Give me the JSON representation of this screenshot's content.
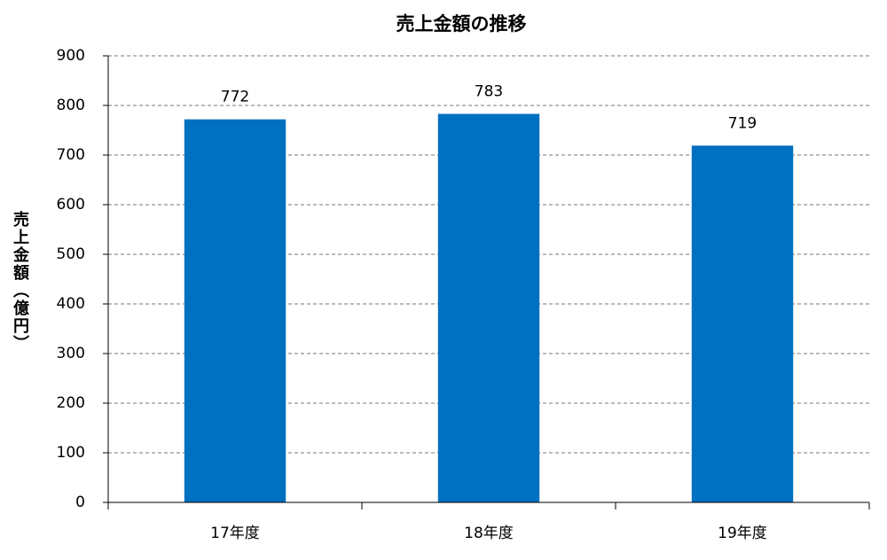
{
  "chart_data": {
    "type": "bar",
    "title": "売上金額の推移",
    "y_label": "売上金額（億円）",
    "categories": [
      "17年度",
      "18年度",
      "19年度"
    ],
    "values": [
      772,
      783,
      719
    ],
    "color": "#0070c0",
    "ylim": [
      0,
      900
    ],
    "yticks": [
      0,
      100,
      200,
      300,
      400,
      500,
      600,
      700,
      800,
      900
    ],
    "grid": true
  }
}
